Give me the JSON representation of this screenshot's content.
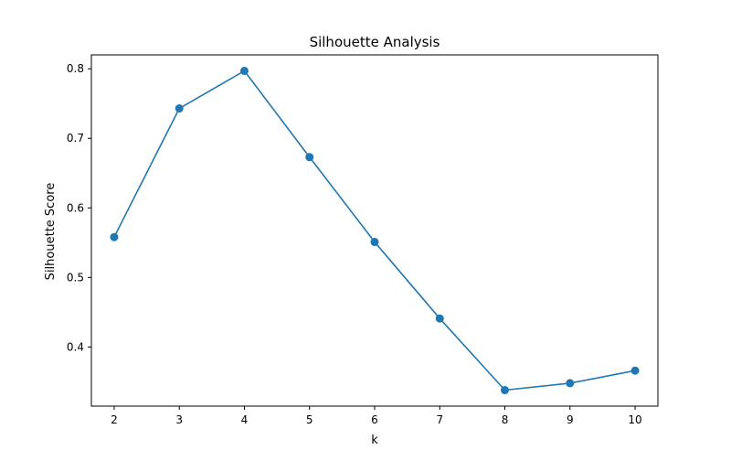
{
  "chart_data": {
    "type": "line",
    "title": "Silhouette Analysis",
    "xlabel": "k",
    "ylabel": "Silhouette Score",
    "x": [
      2,
      3,
      4,
      5,
      6,
      7,
      8,
      9,
      10
    ],
    "series": [
      {
        "values": [
          0.558,
          0.743,
          0.797,
          0.673,
          0.551,
          0.441,
          0.338,
          0.348,
          0.366
        ],
        "color": "#1f77b4",
        "marker": "circle"
      }
    ],
    "xlim": [
      1.65,
      10.35
    ],
    "ylim": [
      0.315,
      0.82
    ],
    "xticks": [
      2,
      3,
      4,
      5,
      6,
      7,
      8,
      9,
      10
    ],
    "yticks": [
      0.4,
      0.5,
      0.6,
      0.7,
      0.8
    ],
    "grid": false,
    "legend": "none"
  }
}
